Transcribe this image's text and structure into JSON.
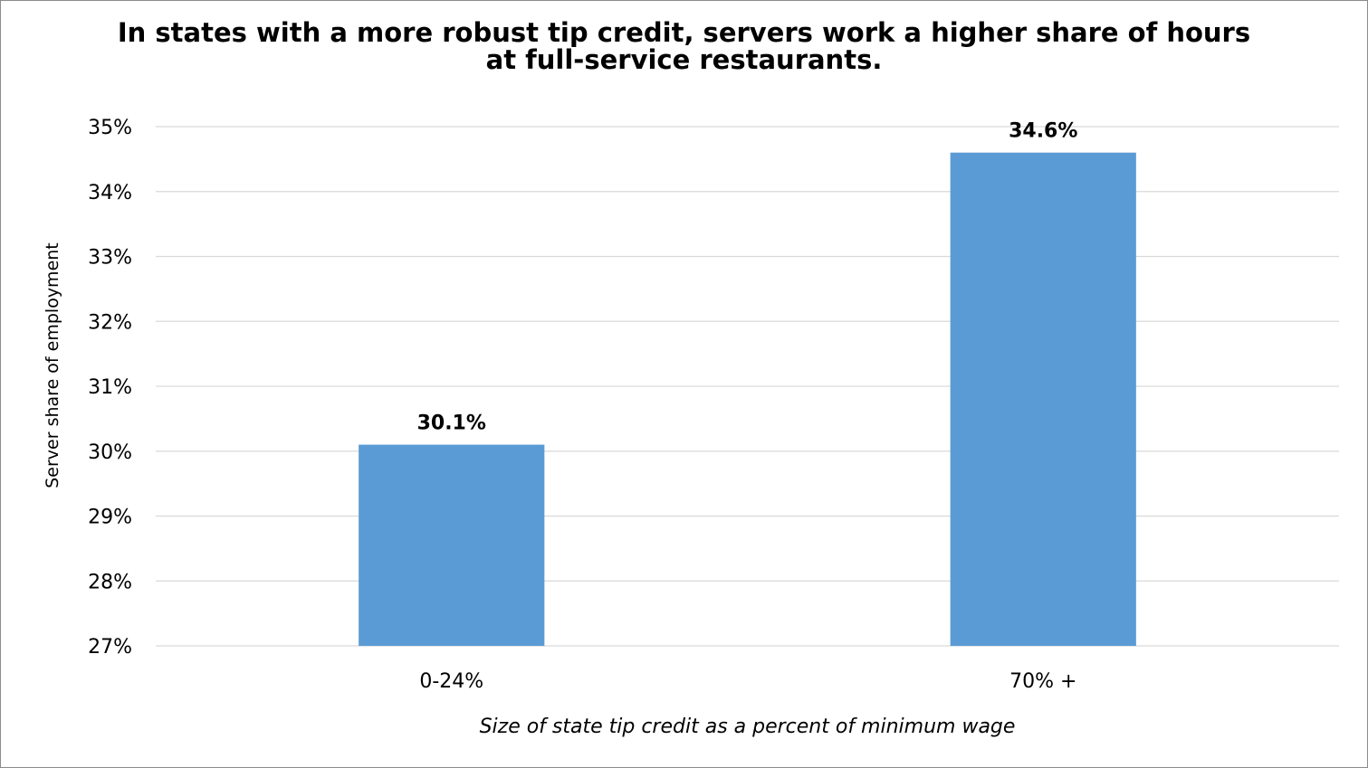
{
  "chart_data": {
    "type": "bar",
    "title_lines": [
      "In states with a more robust tip credit, servers work a higher share of hours",
      "at full-service restaurants."
    ],
    "xlabel": "Size of state tip credit as a percent of minimum wage",
    "ylabel": "Server share of employment",
    "categories": [
      "0-24%",
      "70% +"
    ],
    "values": [
      30.1,
      34.6
    ],
    "data_labels": [
      "30.1%",
      "34.6%"
    ],
    "ylim": [
      27,
      35
    ],
    "y_ticks": [
      27,
      28,
      29,
      30,
      31,
      32,
      33,
      34,
      35
    ],
    "y_tick_labels": [
      "27%",
      "28%",
      "29%",
      "30%",
      "31%",
      "32%",
      "33%",
      "34%",
      "35%"
    ],
    "grid": true,
    "legend": "none",
    "colors": {
      "bar": "#5b9bd5",
      "grid": "#d9d9d9",
      "text": "#000000"
    }
  }
}
